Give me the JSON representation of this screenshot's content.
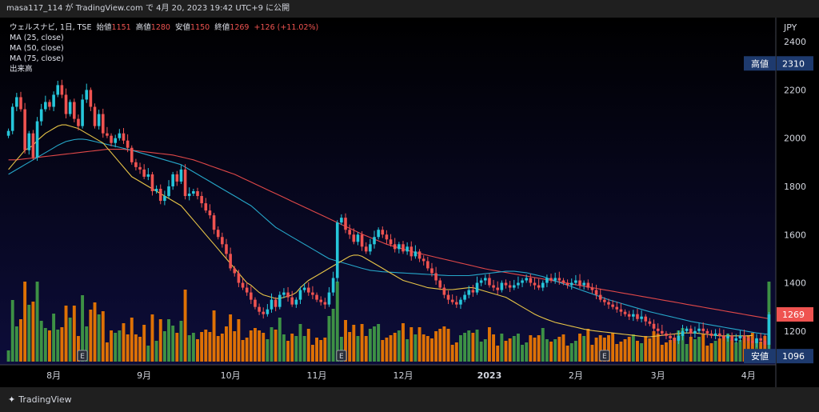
{
  "header": {
    "text": "masa117_114 が TradingView.com で 4月 20, 2023 19:42 UTC+9 に公開"
  },
  "legend": {
    "symbol": "ウェルスナビ, 1日, TSE",
    "open_label": "始値",
    "open": "1151",
    "high_label": "高値",
    "high": "1280",
    "low_label": "安値",
    "low": "1150",
    "close_label": "終値",
    "close": "1269",
    "change": "+126 (+11.02%)",
    "ma25": "MA (25, close)",
    "ma50": "MA (50, close)",
    "ma75": "MA (75, close)",
    "volume": "出来高"
  },
  "footer": {
    "brand": "TradingView"
  },
  "colors": {
    "background": "#0d0d3a",
    "up": "#26c6da",
    "down": "#ef5350",
    "vol_up": "#43a047",
    "vol_down": "#f57c00",
    "ma25": "#e8c547",
    "ma50": "#26a7c9",
    "ma75": "#e04848"
  },
  "chart_data": {
    "type": "candlestick",
    "currency": "JPY",
    "ylim": [
      1060,
      2500
    ],
    "yticks": [
      1200,
      1400,
      1600,
      1800,
      2000,
      2200,
      2400
    ],
    "xlabels": [
      {
        "label": "8月",
        "i": 11
      },
      {
        "label": "9月",
        "i": 33
      },
      {
        "label": "10月",
        "i": 54
      },
      {
        "label": "11月",
        "i": 75
      },
      {
        "label": "12月",
        "i": 96
      },
      {
        "label": "2023",
        "i": 117
      },
      {
        "label": "2月",
        "i": 138
      },
      {
        "label": "3月",
        "i": 158
      },
      {
        "label": "4月",
        "i": 180
      }
    ],
    "earnings_markers": [
      18,
      81,
      145
    ],
    "price_tags": {
      "high_label": "高値",
      "high_value": "2310",
      "current_value": "1269",
      "low_label": "安値",
      "low_value": "1096"
    },
    "close": [
      2030,
      2130,
      2170,
      2120,
      1950,
      2020,
      1920,
      2070,
      2120,
      2150,
      2130,
      2180,
      2220,
      2180,
      2100,
      2150,
      2080,
      2050,
      2160,
      2200,
      2130,
      2050,
      2100,
      2020,
      2010,
      1980,
      2000,
      2020,
      1990,
      1960,
      1900,
      1880,
      1870,
      1840,
      1850,
      1780,
      1790,
      1740,
      1760,
      1800,
      1850,
      1820,
      1870,
      1760,
      1770,
      1780,
      1760,
      1730,
      1700,
      1680,
      1620,
      1590,
      1560,
      1520,
      1460,
      1440,
      1400,
      1380,
      1360,
      1330,
      1300,
      1280,
      1270,
      1290,
      1330,
      1300,
      1350,
      1360,
      1340,
      1310,
      1330,
      1370,
      1380,
      1360,
      1350,
      1330,
      1320,
      1310,
      1360,
      1420,
      1650,
      1670,
      1620,
      1600,
      1570,
      1600,
      1550,
      1530,
      1560,
      1590,
      1620,
      1600,
      1580,
      1560,
      1540,
      1560,
      1530,
      1550,
      1510,
      1530,
      1500,
      1490,
      1460,
      1440,
      1410,
      1380,
      1350,
      1330,
      1320,
      1310,
      1330,
      1350,
      1370,
      1360,
      1400,
      1410,
      1420,
      1390,
      1380,
      1370,
      1400,
      1390,
      1380,
      1390,
      1400,
      1410,
      1420,
      1400,
      1390,
      1380,
      1400,
      1420,
      1410,
      1420,
      1410,
      1400,
      1390,
      1400,
      1410,
      1390,
      1400,
      1380,
      1370,
      1350,
      1330,
      1320,
      1310,
      1300,
      1290,
      1280,
      1270,
      1260,
      1270,
      1250,
      1260,
      1240,
      1230,
      1210,
      1200,
      1190,
      1180,
      1170,
      1160,
      1180,
      1200,
      1210,
      1190,
      1200,
      1210,
      1200,
      1190,
      1180,
      1190,
      1180,
      1170,
      1180,
      1160,
      1170,
      1180,
      1170,
      1160,
      1150,
      1170,
      1160,
      1143,
      1269
    ],
    "ma25": [
      1870,
      1890,
      1910,
      1930,
      1950,
      1960,
      1970,
      1990,
      2005,
      2020,
      2030,
      2040,
      2050,
      2055,
      2055,
      2050,
      2045,
      2040,
      2030,
      2020,
      2010,
      2000,
      1990,
      1980,
      1960,
      1940,
      1920,
      1900,
      1880,
      1860,
      1840,
      1830,
      1820,
      1810,
      1800,
      1790,
      1780,
      1770,
      1760,
      1750,
      1740,
      1730,
      1720,
      1700,
      1680,
      1660,
      1640,
      1620,
      1600,
      1580,
      1560,
      1540,
      1520,
      1500,
      1480,
      1460,
      1440,
      1420,
      1400,
      1390,
      1375,
      1360,
      1350,
      1345,
      1340,
      1335,
      1335,
      1340,
      1345,
      1350,
      1360,
      1380,
      1395,
      1410,
      1420,
      1430,
      1440,
      1450,
      1460,
      1470,
      1480,
      1490,
      1500,
      1510,
      1515,
      1515,
      1510,
      1500,
      1490,
      1480,
      1470,
      1460,
      1450,
      1440,
      1430,
      1420,
      1410,
      1405,
      1400,
      1395,
      1390,
      1385,
      1380,
      1378,
      1376,
      1374,
      1372,
      1372,
      1372,
      1374,
      1376,
      1378,
      1380,
      1380,
      1375,
      1370,
      1365,
      1360,
      1355,
      1350,
      1345,
      1340,
      1330,
      1320,
      1310,
      1300,
      1290,
      1280,
      1270,
      1262,
      1255,
      1248,
      1242,
      1236,
      1232,
      1228,
      1224,
      1220,
      1216,
      1212,
      1208,
      1205,
      1202,
      1200,
      1198,
      1196,
      1194,
      1192,
      1190,
      1188,
      1186,
      1184,
      1182,
      1180,
      1178,
      1176,
      1176,
      1178,
      1180,
      1182,
      1184,
      1186,
      1188,
      1190,
      1192,
      1192,
      1192,
      1192,
      1190,
      1188,
      1186,
      1184,
      1182,
      1180,
      1180,
      1180,
      1180,
      1180,
      1180,
      1180,
      1180,
      1182
    ],
    "ma50": [
      1850,
      1860,
      1870,
      1880,
      1890,
      1900,
      1910,
      1920,
      1930,
      1940,
      1950,
      1960,
      1970,
      1978,
      1986,
      1990,
      1994,
      1996,
      1996,
      1994,
      1990,
      1986,
      1982,
      1978,
      1974,
      1970,
      1966,
      1962,
      1958,
      1954,
      1950,
      1945,
      1940,
      1935,
      1930,
      1925,
      1920,
      1915,
      1910,
      1905,
      1900,
      1895,
      1890,
      1880,
      1870,
      1860,
      1850,
      1840,
      1830,
      1820,
      1810,
      1800,
      1790,
      1780,
      1770,
      1760,
      1750,
      1740,
      1730,
      1720,
      1705,
      1690,
      1675,
      1660,
      1645,
      1630,
      1620,
      1610,
      1600,
      1590,
      1580,
      1570,
      1560,
      1550,
      1540,
      1530,
      1520,
      1510,
      1500,
      1495,
      1490,
      1485,
      1480,
      1475,
      1470,
      1465,
      1460,
      1456,
      1452,
      1450,
      1448,
      1446,
      1445,
      1444,
      1443,
      1442,
      1441,
      1440,
      1439,
      1438,
      1437,
      1436,
      1435,
      1434,
      1433,
      1432,
      1431,
      1430,
      1430,
      1430,
      1430,
      1430,
      1430,
      1432,
      1434,
      1436,
      1438,
      1440,
      1442,
      1444,
      1446,
      1448,
      1448,
      1448,
      1446,
      1444,
      1442,
      1438,
      1434,
      1430,
      1426,
      1420,
      1414,
      1408,
      1402,
      1396,
      1390,
      1384,
      1378,
      1372,
      1366,
      1360,
      1354,
      1348,
      1342,
      1336,
      1330,
      1325,
      1320,
      1315,
      1310,
      1305,
      1300,
      1295,
      1290,
      1285,
      1280,
      1276,
      1272,
      1268,
      1264,
      1260,
      1256,
      1252,
      1248,
      1244,
      1240,
      1237,
      1234,
      1231,
      1228,
      1225,
      1222,
      1219,
      1216,
      1213,
      1210,
      1207,
      1204,
      1201,
      1198,
      1195,
      1192,
      1190,
      1188,
      1186
    ],
    "ma75": [
      1910,
      1910,
      1910,
      1912,
      1914,
      1916,
      1918,
      1920,
      1922,
      1924,
      1926,
      1928,
      1930,
      1932,
      1934,
      1936,
      1938,
      1940,
      1942,
      1944,
      1946,
      1948,
      1950,
      1952,
      1954,
      1954,
      1954,
      1954,
      1954,
      1952,
      1950,
      1948,
      1946,
      1944,
      1942,
      1940,
      1938,
      1936,
      1934,
      1932,
      1930,
      1926,
      1922,
      1918,
      1914,
      1910,
      1904,
      1898,
      1892,
      1886,
      1880,
      1874,
      1868,
      1862,
      1856,
      1850,
      1842,
      1834,
      1826,
      1818,
      1810,
      1802,
      1794,
      1786,
      1778,
      1770,
      1762,
      1754,
      1746,
      1738,
      1730,
      1722,
      1714,
      1706,
      1698,
      1690,
      1682,
      1674,
      1666,
      1658,
      1650,
      1642,
      1634,
      1626,
      1618,
      1610,
      1602,
      1595,
      1588,
      1581,
      1574,
      1567,
      1560,
      1555,
      1550,
      1545,
      1540,
      1535,
      1530,
      1526,
      1522,
      1518,
      1514,
      1510,
      1506,
      1502,
      1498,
      1494,
      1490,
      1486,
      1482,
      1478,
      1474,
      1470,
      1466,
      1462,
      1458,
      1455,
      1452,
      1449,
      1446,
      1443,
      1440,
      1437,
      1434,
      1431,
      1428,
      1425,
      1422,
      1419,
      1416,
      1413,
      1410,
      1407,
      1404,
      1401,
      1398,
      1395,
      1392,
      1389,
      1386,
      1383,
      1380,
      1377,
      1374,
      1371,
      1368,
      1365,
      1362,
      1359,
      1356,
      1353,
      1350,
      1347,
      1344,
      1341,
      1338,
      1335,
      1332,
      1329,
      1326,
      1323,
      1320,
      1317,
      1314,
      1311,
      1308,
      1305,
      1302,
      1299,
      1296,
      1293,
      1290,
      1287,
      1284,
      1281,
      1278,
      1275,
      1272,
      1269,
      1266,
      1263,
      1260,
      1257,
      1254,
      1251
    ]
  }
}
